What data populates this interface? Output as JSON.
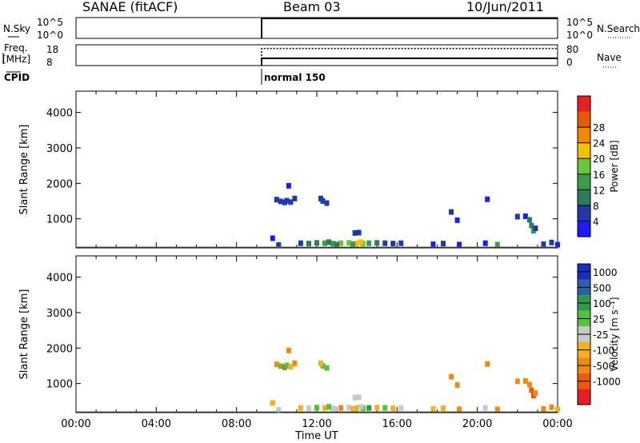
{
  "header": {
    "site": "SANAE (fitACF)",
    "beam": "Beam 03",
    "date": "10/Jun/2011"
  },
  "colors": {
    "power_scale": [
      "#1a1aff",
      "#1f3aa8",
      "#2e7d5a",
      "#3a9c4a",
      "#6cc63a",
      "#f2c200",
      "#f08a00",
      "#e85a00",
      "#e62020"
    ],
    "velocity_scale": [
      "#e62020",
      "#ec5a10",
      "#ef8a10",
      "#f4b020",
      "#c8c8c8",
      "#56c23a",
      "#2e9a4a",
      "#2b5fa8",
      "#1a2fc0"
    ]
  },
  "chart_data": [
    {
      "type": "line",
      "panel": "N.Sky / N.Search",
      "ylabel_left": "N.Sky",
      "ylabel_right": "N.Search",
      "left_ticks": [
        "10^5",
        "10^0"
      ],
      "right_ticks": [
        "10^5",
        "10^0"
      ],
      "x": [
        "00:00",
        "09:15",
        "09:15",
        "24:00"
      ],
      "series": [
        {
          "values": [
            null,
            0,
            4.8,
            4.8
          ]
        }
      ]
    },
    {
      "type": "line",
      "panel": "Freq / Nave",
      "ylabel_left": "Freq.\n[MHz]",
      "ylabel_right": "Nave",
      "left_ticks": [
        "18",
        "8"
      ],
      "right_ticks": [
        "80",
        "0"
      ],
      "x": [
        "00:00",
        "09:15",
        "09:15",
        "24:00"
      ],
      "series": [
        {
          "values": [
            null,
            8,
            11.5,
            11.5
          ]
        },
        {
          "values": [
            null,
            8,
            16.2,
            16.2
          ]
        }
      ]
    },
    {
      "type": "table",
      "panel": "CPID",
      "label": "CPID",
      "entries": [
        {
          "start": "09:15",
          "text": "normal 150"
        }
      ]
    },
    {
      "type": "heatmap",
      "panel": "power",
      "ylabel": "Slant Range [km]",
      "yticks": [
        "1000",
        "2000",
        "3000",
        "4000"
      ],
      "ylim": [
        180,
        4600
      ],
      "xlim": [
        "00:00",
        "24:00"
      ],
      "colorbar": {
        "label": "Power [dB]",
        "ticks": [
          "4",
          "8",
          "12",
          "16",
          "20",
          "24",
          "28"
        ],
        "range": [
          0,
          32
        ]
      },
      "cells": [
        [
          10.0,
          1530,
          6
        ],
        [
          10.2,
          1480,
          5
        ],
        [
          10.4,
          1450,
          7
        ],
        [
          10.5,
          1500,
          4
        ],
        [
          10.7,
          1460,
          5
        ],
        [
          10.6,
          1920,
          3
        ],
        [
          10.9,
          1560,
          6
        ],
        [
          12.3,
          1490,
          5
        ],
        [
          12.5,
          1430,
          6
        ],
        [
          12.2,
          1560,
          4
        ],
        [
          11.2,
          300,
          6
        ],
        [
          11.6,
          290,
          8
        ],
        [
          12.0,
          310,
          10
        ],
        [
          12.4,
          300,
          12
        ],
        [
          12.8,
          290,
          14
        ],
        [
          13.2,
          300,
          16
        ],
        [
          13.6,
          310,
          18
        ],
        [
          14.0,
          300,
          20
        ],
        [
          14.3,
          290,
          17
        ],
        [
          14.6,
          300,
          13
        ],
        [
          15.0,
          310,
          10
        ],
        [
          15.4,
          300,
          7
        ],
        [
          15.8,
          290,
          5
        ],
        [
          16.2,
          300,
          4
        ],
        [
          13.0,
          260,
          9
        ],
        [
          13.8,
          270,
          15
        ],
        [
          14.2,
          330,
          22
        ],
        [
          12.6,
          330,
          11
        ],
        [
          13.9,
          590,
          6
        ],
        [
          14.1,
          600,
          5
        ],
        [
          9.8,
          440,
          3
        ],
        [
          10.1,
          250,
          4
        ],
        [
          17.8,
          270,
          3
        ],
        [
          18.3,
          290,
          4
        ],
        [
          19.1,
          260,
          3
        ],
        [
          20.4,
          300,
          3
        ],
        [
          21.0,
          260,
          12
        ],
        [
          18.7,
          1180,
          4
        ],
        [
          19.0,
          950,
          3
        ],
        [
          20.5,
          1540,
          3
        ],
        [
          22.0,
          1050,
          4
        ],
        [
          22.4,
          1060,
          3
        ],
        [
          22.6,
          960,
          8
        ],
        [
          22.7,
          800,
          10
        ],
        [
          22.8,
          650,
          12
        ],
        [
          22.9,
          720,
          6
        ],
        [
          23.3,
          270,
          5
        ],
        [
          23.7,
          320,
          4
        ],
        [
          24.0,
          260,
          3
        ]
      ]
    },
    {
      "type": "heatmap",
      "panel": "velocity",
      "ylabel": "Slant Range [km]",
      "yticks": [
        "1000",
        "2000",
        "3000",
        "4000"
      ],
      "ylim": [
        180,
        4600
      ],
      "xlim": [
        "00:00",
        "24:00"
      ],
      "xlabel": "Time UT",
      "xticks": [
        "00:00",
        "04:00",
        "08:00",
        "12:00",
        "16:00",
        "20:00",
        "00:00"
      ],
      "colorbar": {
        "label": "Velocity [m s^-1]",
        "ticks": [
          "1000",
          "500",
          "100",
          "25",
          "-25",
          "-100",
          "-500",
          "-1000"
        ]
      },
      "cells": [
        [
          10.0,
          1530,
          -100
        ],
        [
          10.2,
          1480,
          50
        ],
        [
          10.4,
          1450,
          -500
        ],
        [
          10.5,
          1500,
          80
        ],
        [
          10.7,
          1460,
          -80
        ],
        [
          10.6,
          1920,
          -200
        ],
        [
          10.9,
          1560,
          -100
        ],
        [
          12.3,
          1490,
          100
        ],
        [
          12.5,
          1430,
          60
        ],
        [
          12.2,
          1560,
          -50
        ],
        [
          11.2,
          300,
          -50
        ],
        [
          11.6,
          290,
          5
        ],
        [
          12.0,
          310,
          40
        ],
        [
          12.4,
          300,
          -80
        ],
        [
          12.8,
          290,
          10
        ],
        [
          13.2,
          300,
          -100
        ],
        [
          13.6,
          310,
          20
        ],
        [
          14.0,
          300,
          -60
        ],
        [
          14.3,
          290,
          60
        ],
        [
          14.6,
          300,
          150
        ],
        [
          15.0,
          310,
          -50
        ],
        [
          15.4,
          300,
          30
        ],
        [
          15.8,
          290,
          -80
        ],
        [
          16.2,
          300,
          20
        ],
        [
          13.0,
          260,
          10
        ],
        [
          13.8,
          270,
          -90
        ],
        [
          14.2,
          330,
          0
        ],
        [
          12.6,
          330,
          40
        ],
        [
          13.9,
          590,
          0
        ],
        [
          14.1,
          600,
          -20
        ],
        [
          9.8,
          440,
          -80
        ],
        [
          10.1,
          250,
          5
        ],
        [
          17.8,
          270,
          -60
        ],
        [
          18.3,
          290,
          -80
        ],
        [
          19.1,
          260,
          -200
        ],
        [
          20.4,
          300,
          10
        ],
        [
          21.0,
          260,
          -100
        ],
        [
          18.7,
          1180,
          -200
        ],
        [
          19.0,
          950,
          -300
        ],
        [
          20.5,
          1540,
          -400
        ],
        [
          22.0,
          1050,
          -300
        ],
        [
          22.4,
          1060,
          -200
        ],
        [
          22.6,
          960,
          -400
        ],
        [
          22.7,
          800,
          -500
        ],
        [
          22.8,
          650,
          -600
        ],
        [
          22.9,
          720,
          -300
        ],
        [
          23.3,
          270,
          -200
        ],
        [
          23.7,
          320,
          -100
        ],
        [
          24.0,
          260,
          -80
        ]
      ]
    }
  ]
}
